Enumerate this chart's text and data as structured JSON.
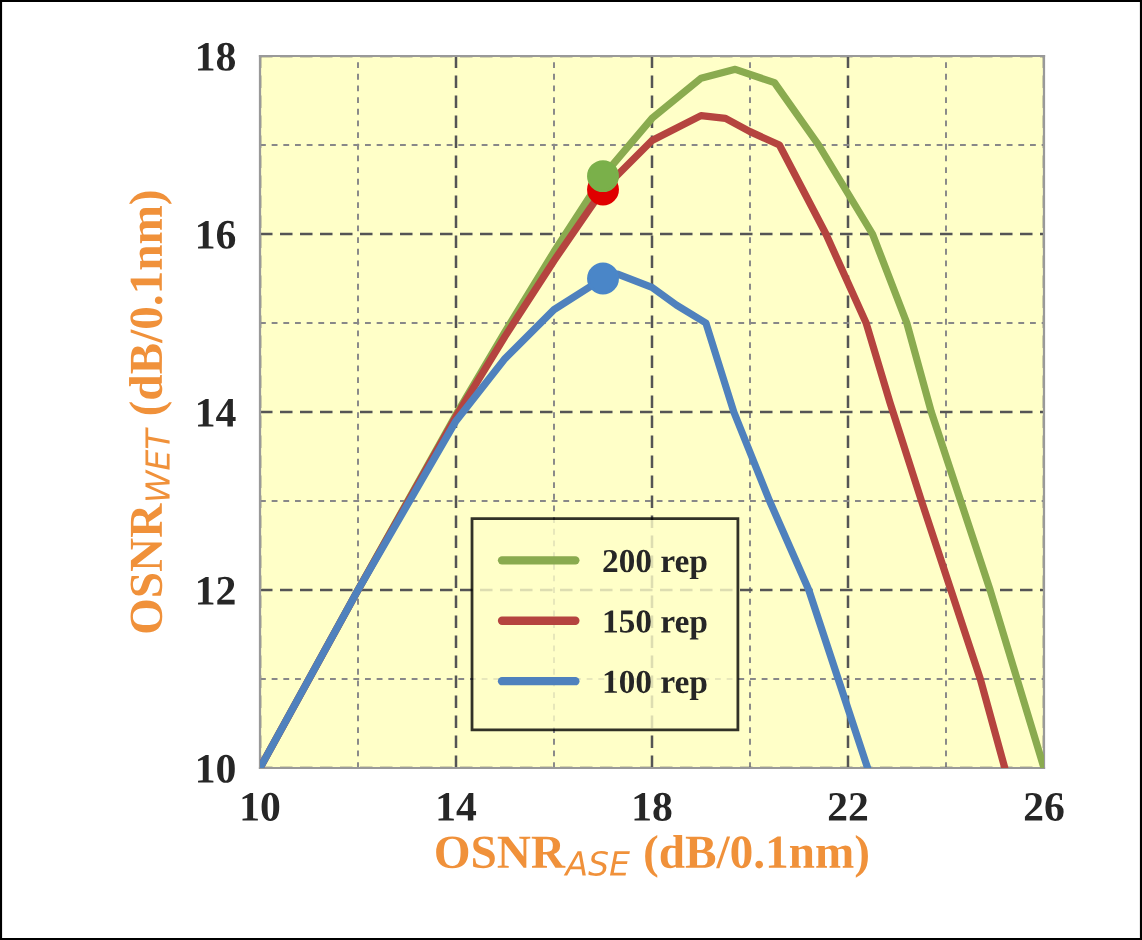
{
  "chart_data": {
    "type": "line",
    "xlabel": "OSNR$_{ASE}$ (dB/0.1nm)",
    "ylabel": "OSNR$_{WET}$ (dB/0.1nm)",
    "xlim": [
      10,
      26
    ],
    "xticks": [
      10,
      14,
      18,
      22,
      26
    ],
    "ylim": [
      10,
      18
    ],
    "yticks": [
      10,
      12,
      14,
      16,
      18
    ],
    "grid": true,
    "legend": "bottom",
    "line_style": "solid",
    "marker": "none",
    "series": [
      {
        "name": "200 rep",
        "color": "#8aab4f",
        "x": [
          10,
          12,
          14,
          15,
          16,
          17,
          18,
          19,
          19.7,
          20.5,
          21.4,
          22.5,
          23.2,
          23.7,
          24.3,
          24.9,
          25.45,
          26
        ],
        "values": [
          10,
          12,
          13.97,
          14.9,
          15.8,
          16.65,
          17.3,
          17.75,
          17.85,
          17.7,
          17,
          16,
          15,
          14,
          13,
          12,
          11,
          10
        ]
      },
      {
        "name": "150 rep",
        "color": "#b5443f",
        "x": [
          10,
          12,
          14,
          15,
          16,
          17,
          18,
          19,
          19.5,
          20,
          20.6,
          21.55,
          22.37,
          22.86,
          23.5,
          24.1,
          24.7,
          25.2
        ],
        "values": [
          10,
          12,
          13.95,
          14.85,
          15.7,
          16.5,
          17.05,
          17.33,
          17.3,
          17.15,
          17,
          16,
          15,
          14.1,
          13,
          12,
          11,
          10
        ]
      },
      {
        "name": "100 rep",
        "color": "#4f81bd",
        "x": [
          10,
          12,
          14,
          15,
          16,
          17,
          17.3,
          18,
          18.5,
          19.1,
          19.67,
          20.4,
          21.2,
          21.8,
          22.4
        ],
        "values": [
          10,
          12,
          13.9,
          14.6,
          15.15,
          15.5,
          15.55,
          15.4,
          15.2,
          15,
          14,
          13,
          12,
          11,
          10
        ]
      },
      {
        "type": "scatter",
        "marker": "circle",
        "color": "#e00000",
        "x": [
          17
        ],
        "values": [
          16.5
        ]
      },
      {
        "type": "scatter",
        "marker": "circle",
        "color": "#7ab04a",
        "x": [
          17
        ],
        "values": [
          16.65
        ]
      },
      {
        "type": "scatter",
        "marker": "circle",
        "color": "#4a86c8",
        "x": [
          17
        ],
        "values": [
          15.5
        ]
      }
    ]
  }
}
